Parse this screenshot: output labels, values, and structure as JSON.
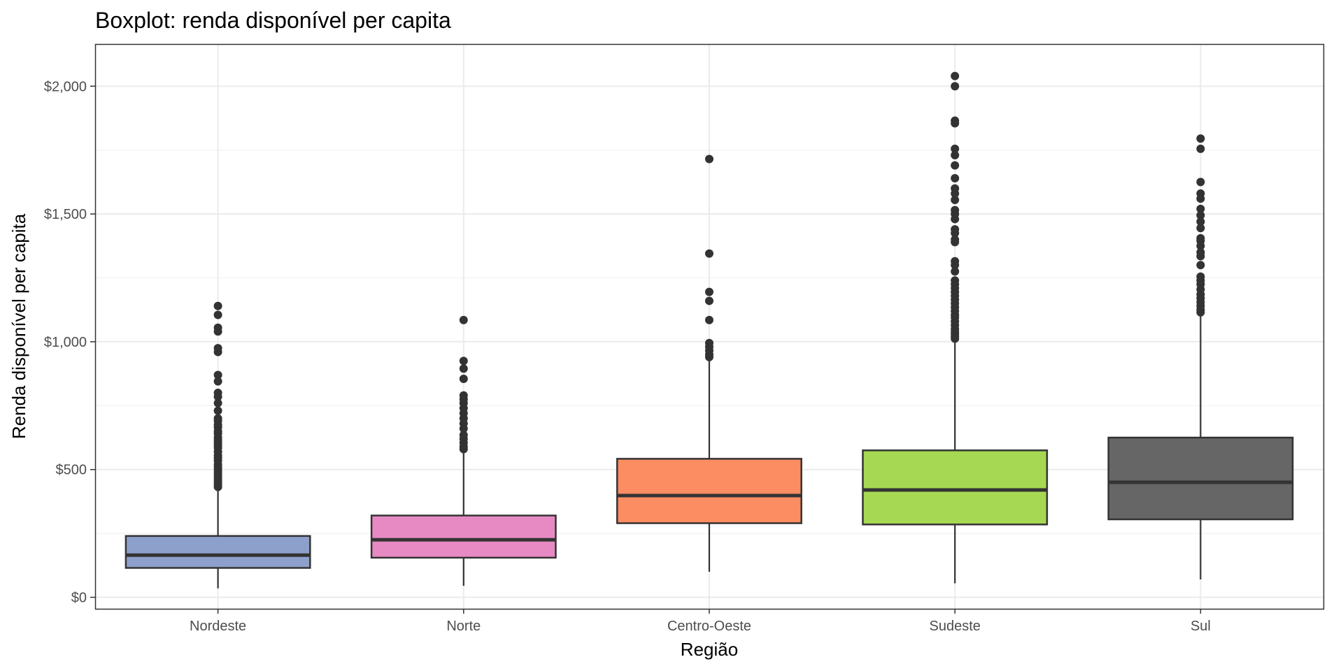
{
  "chart_data": {
    "type": "boxplot",
    "title": "Boxplot: renda disponível per capita",
    "xlabel": "Região",
    "ylabel": "Renda disponível per capita",
    "ylim": [
      -45,
      2165
    ],
    "y_ticks": [
      {
        "value": 0,
        "label": "$0"
      },
      {
        "value": 500,
        "label": "$500"
      },
      {
        "value": 1000,
        "label": "$1,000"
      },
      {
        "value": 1500,
        "label": "$1,500"
      },
      {
        "value": 2000,
        "label": "$2,000"
      }
    ],
    "y_minor_ticks": [
      250,
      750,
      1250,
      1750
    ],
    "grid": true,
    "legend": "none",
    "categories": [
      "Nordeste",
      "Norte",
      "Centro-Oeste",
      "Sudeste",
      "Sul"
    ],
    "boxes": [
      {
        "name": "Nordeste",
        "color": "#8DA0CB",
        "whisker_low": 35,
        "q1": 115,
        "median": 165,
        "q3": 240,
        "whisker_high": 425,
        "outliers": [
          1140,
          1105,
          1055,
          1040,
          975,
          960,
          870,
          845,
          800,
          785,
          760,
          730,
          700,
          690,
          675,
          665,
          650,
          640,
          625,
          615,
          605,
          595,
          585,
          570,
          555,
          545,
          535,
          520,
          510,
          500,
          490,
          480,
          470,
          460,
          450,
          440,
          432
        ]
      },
      {
        "name": "Norte",
        "color": "#E78AC3",
        "whisker_low": 45,
        "q1": 155,
        "median": 225,
        "q3": 320,
        "whisker_high": 575,
        "outliers": [
          1085,
          925,
          895,
          855,
          790,
          775,
          760,
          740,
          720,
          700,
          680,
          660,
          635,
          620,
          605,
          590,
          580
        ]
      },
      {
        "name": "Centro-Oeste",
        "color": "#FC8D62",
        "whisker_low": 100,
        "q1": 290,
        "median": 398,
        "q3": 542,
        "whisker_high": 925,
        "outliers": [
          1715,
          1345,
          1195,
          1160,
          1085,
          995,
          980,
          965,
          950,
          940
        ]
      },
      {
        "name": "Sudeste",
        "color": "#A6D854",
        "whisker_low": 55,
        "q1": 285,
        "median": 420,
        "q3": 575,
        "whisker_high": 1010,
        "outliers": [
          2040,
          2000,
          1865,
          1855,
          1755,
          1730,
          1690,
          1640,
          1600,
          1580,
          1555,
          1515,
          1500,
          1480,
          1440,
          1425,
          1400,
          1390,
          1315,
          1300,
          1275,
          1240,
          1225,
          1210,
          1195,
          1180,
          1165,
          1150,
          1135,
          1120,
          1105,
          1095,
          1080,
          1065,
          1050,
          1040,
          1030,
          1020,
          1012
        ]
      },
      {
        "name": "Sul",
        "color": "#666666",
        "whisker_low": 70,
        "q1": 305,
        "median": 450,
        "q3": 625,
        "whisker_high": 1110,
        "outliers": [
          1795,
          1755,
          1625,
          1580,
          1560,
          1520,
          1495,
          1470,
          1445,
          1405,
          1395,
          1375,
          1350,
          1335,
          1300,
          1255,
          1240,
          1225,
          1205,
          1185,
          1170,
          1155,
          1140,
          1125,
          1115
        ]
      }
    ]
  }
}
